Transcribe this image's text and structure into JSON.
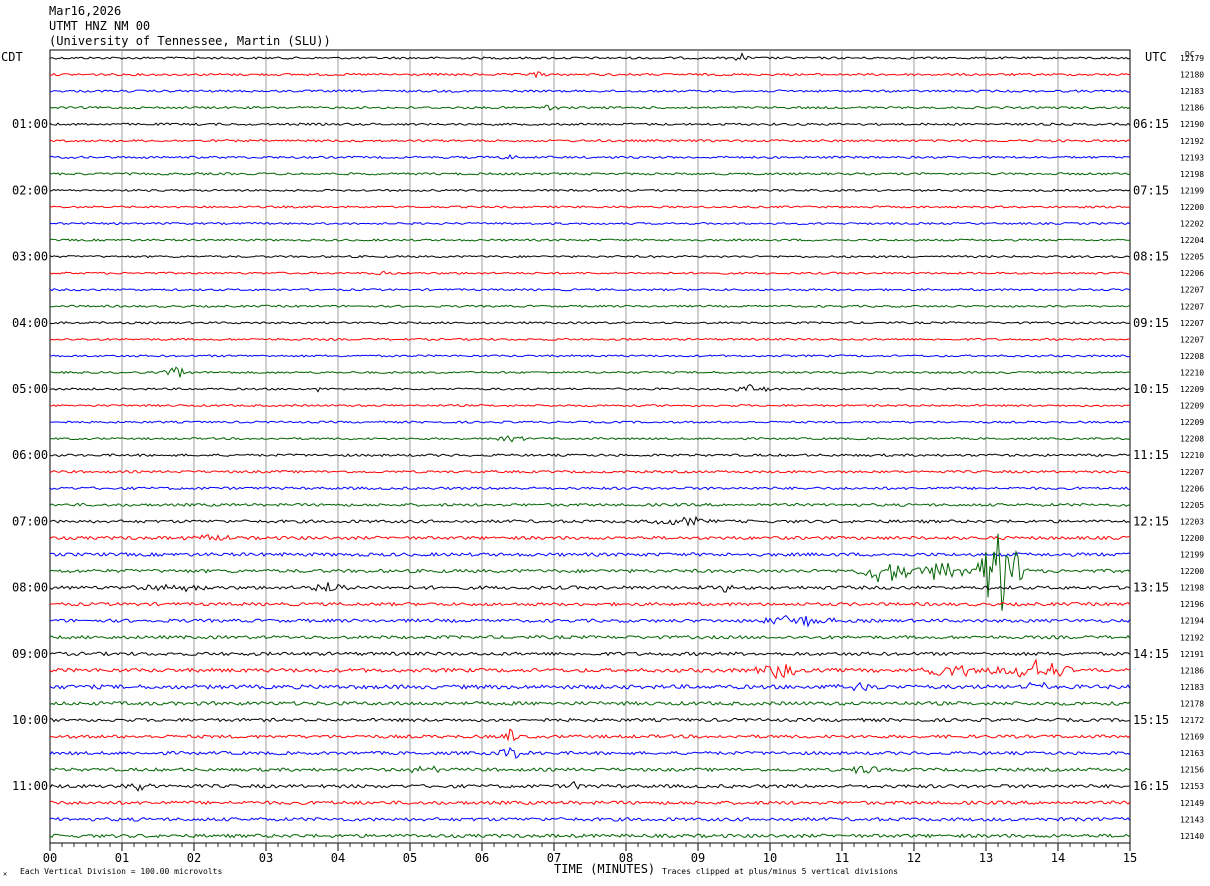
{
  "header": {
    "date": "Mar16,2026",
    "station": "UTMT HNZ NM 00",
    "network": "(University of Tennessee, Martin (SLU))"
  },
  "left_tz": "CDT",
  "right_tz": "UTC",
  "dc_label": "DC",
  "footer": {
    "left_mark": "✕",
    "scale_note": "Each Vertical Division =  100.00 microvolts",
    "xlabel": "TIME (MINUTES)",
    "clip_note": "Traces clipped at plus/minus 5 vertical divisions"
  },
  "colors": {
    "cycle": [
      "#000000",
      "#ff0000",
      "#0000ff",
      "#006400"
    ],
    "grid": "#888888"
  },
  "chart_data": {
    "type": "line",
    "title": "UTMT HNZ NM 00",
    "xlabel": "TIME (MINUTES)",
    "x_ticks": [
      "00",
      "01",
      "02",
      "03",
      "04",
      "05",
      "06",
      "07",
      "08",
      "09",
      "10",
      "11",
      "12",
      "13",
      "14",
      "15"
    ],
    "xlim": [
      0,
      15
    ],
    "trace_minutes": 15,
    "left_time_labels": [
      "01:00",
      "02:00",
      "03:00",
      "04:00",
      "05:00",
      "06:00",
      "07:00",
      "08:00",
      "09:00",
      "10:00",
      "11:00"
    ],
    "right_time_labels": [
      "06:15",
      "07:15",
      "08:15",
      "09:15",
      "10:15",
      "11:15",
      "12:15",
      "13:15",
      "14:15",
      "15:15",
      "16:15"
    ],
    "label_every_rows": 4,
    "label_first_row": 4,
    "dc_offsets": [
      12179,
      12180,
      12183,
      12186,
      12190,
      12192,
      12193,
      12198,
      12199,
      12200,
      12202,
      12204,
      12205,
      12206,
      12207,
      12207,
      12207,
      12207,
      12208,
      12210,
      12209,
      12209,
      12209,
      12208,
      12210,
      12207,
      12206,
      12205,
      12203,
      12200,
      12199,
      12200,
      12198,
      12196,
      12194,
      12192,
      12191,
      12186,
      12183,
      12178,
      12172,
      12169,
      12163,
      12156,
      12153,
      12149,
      12143,
      12140
    ],
    "base_noise": [
      1.1,
      1.1,
      1.1,
      1.1,
      1.1,
      1.1,
      1.1,
      1.1,
      1.0,
      1.0,
      1.0,
      1.0,
      1.0,
      1.0,
      1.0,
      1.0,
      1.0,
      1.0,
      1.0,
      1.0,
      1.0,
      1.0,
      1.0,
      1.0,
      1.2,
      1.2,
      1.3,
      1.4,
      1.5,
      1.6,
      1.7,
      1.7,
      1.7,
      1.6,
      1.6,
      1.6,
      1.7,
      1.9,
      2.0,
      1.8,
      1.6,
      1.6,
      1.6,
      1.6,
      1.7,
      1.7,
      1.7,
      1.7
    ],
    "events": [
      {
        "row": 0,
        "minute": 9.6,
        "amp": 4,
        "dur": 0.15
      },
      {
        "row": 1,
        "minute": 6.8,
        "amp": 3,
        "dur": 0.2
      },
      {
        "row": 3,
        "minute": 6.9,
        "amp": 2.5,
        "dur": 0.2
      },
      {
        "row": 6,
        "minute": 6.4,
        "amp": 3,
        "dur": 0.2
      },
      {
        "row": 13,
        "minute": 4.6,
        "amp": 2.5,
        "dur": 0.2
      },
      {
        "row": 19,
        "minute": 1.8,
        "amp": 6,
        "dur": 0.3
      },
      {
        "row": 20,
        "minute": 3.7,
        "amp": 5,
        "dur": 0.1
      },
      {
        "row": 20,
        "minute": 9.7,
        "amp": 4,
        "dur": 0.4
      },
      {
        "row": 23,
        "minute": 6.4,
        "amp": 3,
        "dur": 0.3
      },
      {
        "row": 28,
        "minute": 8.8,
        "amp": 5,
        "dur": 0.5
      },
      {
        "row": 29,
        "minute": 2.2,
        "amp": 4,
        "dur": 0.4
      },
      {
        "row": 31,
        "minute": 11.6,
        "amp": 12,
        "dur": 0.5
      },
      {
        "row": 31,
        "minute": 12.4,
        "amp": 10,
        "dur": 0.5
      },
      {
        "row": 31,
        "minute": 13.2,
        "amp": 45,
        "dur": 0.4
      },
      {
        "row": 32,
        "minute": 1.7,
        "amp": 4,
        "dur": 0.6
      },
      {
        "row": 32,
        "minute": 3.9,
        "amp": 5,
        "dur": 0.4
      },
      {
        "row": 32,
        "minute": 9.4,
        "amp": 14,
        "dur": 0.08
      },
      {
        "row": 34,
        "minute": 10.4,
        "amp": 7,
        "dur": 0.6
      },
      {
        "row": 37,
        "minute": 10.1,
        "amp": 8,
        "dur": 0.4
      },
      {
        "row": 37,
        "minute": 12.5,
        "amp": 8,
        "dur": 0.6
      },
      {
        "row": 37,
        "minute": 13.7,
        "amp": 10,
        "dur": 0.8
      },
      {
        "row": 38,
        "minute": 11.2,
        "amp": 5,
        "dur": 0.5
      },
      {
        "row": 38,
        "minute": 13.7,
        "amp": 6,
        "dur": 0.2
      },
      {
        "row": 41,
        "minute": 6.4,
        "amp": 10,
        "dur": 0.15
      },
      {
        "row": 42,
        "minute": 6.4,
        "amp": 6,
        "dur": 0.3
      },
      {
        "row": 43,
        "minute": 5.2,
        "amp": 4,
        "dur": 0.3
      },
      {
        "row": 43,
        "minute": 11.3,
        "amp": 5,
        "dur": 0.3
      },
      {
        "row": 44,
        "minute": 7.3,
        "amp": 8,
        "dur": 0.1
      },
      {
        "row": 44,
        "minute": 1.2,
        "amp": 5,
        "dur": 0.3
      }
    ]
  }
}
